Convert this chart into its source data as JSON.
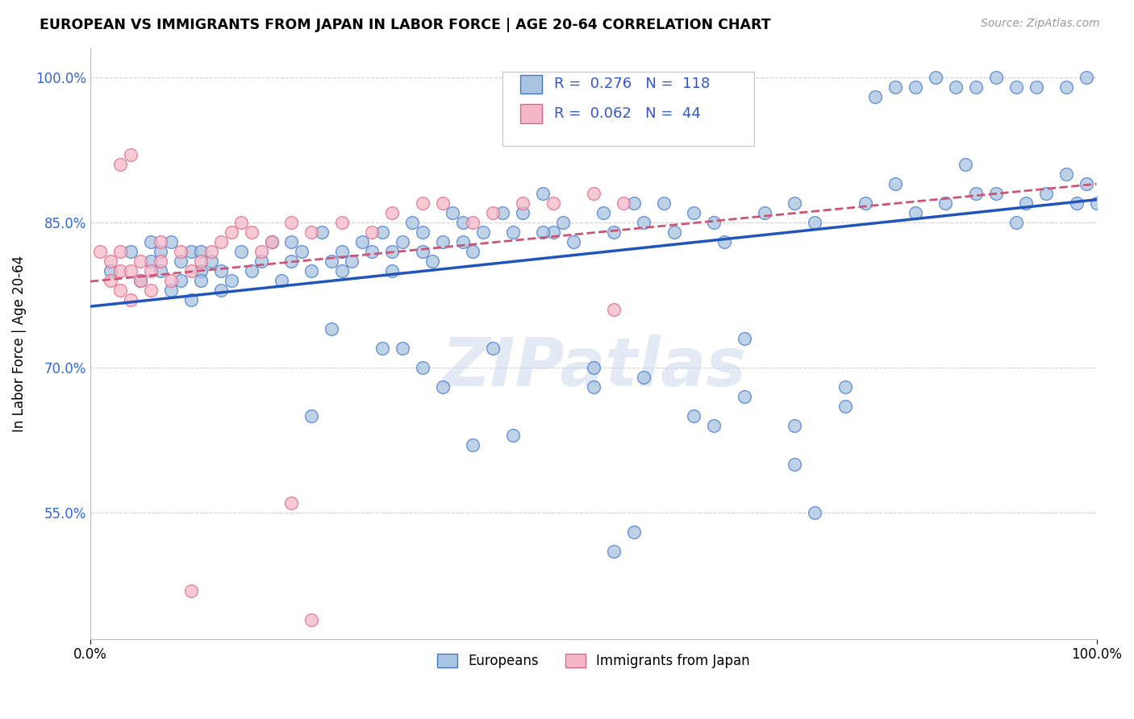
{
  "title": "EUROPEAN VS IMMIGRANTS FROM JAPAN IN LABOR FORCE | AGE 20-64 CORRELATION CHART",
  "source": "Source: ZipAtlas.com",
  "ylabel": "In Labor Force | Age 20-64",
  "xlim": [
    0.0,
    1.0
  ],
  "ylim": [
    0.42,
    1.03
  ],
  "legend_blue_r": "0.276",
  "legend_blue_n": "118",
  "legend_pink_r": "0.062",
  "legend_pink_n": "44",
  "legend_label_blue": "Europeans",
  "legend_label_pink": "Immigrants from Japan",
  "blue_fill": "#a8c4e0",
  "pink_fill": "#f4b8c8",
  "blue_edge": "#4477cc",
  "pink_edge": "#dd6688",
  "blue_line": "#2255bb",
  "pink_line": "#cc5577",
  "watermark": "ZIPatlas",
  "blue_scatter_x": [
    0.02,
    0.04,
    0.05,
    0.06,
    0.06,
    0.07,
    0.07,
    0.08,
    0.08,
    0.09,
    0.09,
    0.1,
    0.1,
    0.11,
    0.11,
    0.11,
    0.12,
    0.13,
    0.13,
    0.14,
    0.15,
    0.16,
    0.17,
    0.18,
    0.19,
    0.2,
    0.2,
    0.21,
    0.22,
    0.23,
    0.24,
    0.25,
    0.25,
    0.26,
    0.27,
    0.28,
    0.29,
    0.3,
    0.3,
    0.31,
    0.32,
    0.33,
    0.33,
    0.34,
    0.35,
    0.36,
    0.37,
    0.37,
    0.38,
    0.39,
    0.4,
    0.41,
    0.42,
    0.43,
    0.45,
    0.46,
    0.47,
    0.48,
    0.5,
    0.51,
    0.52,
    0.54,
    0.55,
    0.57,
    0.58,
    0.6,
    0.62,
    0.63,
    0.65,
    0.67,
    0.7,
    0.72,
    0.75,
    0.77,
    0.8,
    0.82,
    0.85,
    0.87,
    0.88,
    0.9,
    0.92,
    0.93,
    0.95,
    0.97,
    0.98,
    0.99,
    0.5,
    0.55,
    0.6,
    0.65,
    0.42,
    0.38,
    0.7,
    0.75,
    0.29,
    0.24,
    0.31,
    0.33,
    0.35,
    0.62,
    0.7,
    0.72,
    0.78,
    0.8,
    0.82,
    0.84,
    0.86,
    0.88,
    0.9,
    0.92,
    0.94,
    0.97,
    0.99,
    1.0,
    0.52,
    0.54,
    0.22,
    0.45
  ],
  "blue_scatter_y": [
    0.8,
    0.82,
    0.79,
    0.83,
    0.81,
    0.8,
    0.82,
    0.78,
    0.83,
    0.79,
    0.81,
    0.77,
    0.82,
    0.8,
    0.79,
    0.82,
    0.81,
    0.78,
    0.8,
    0.79,
    0.82,
    0.8,
    0.81,
    0.83,
    0.79,
    0.81,
    0.83,
    0.82,
    0.8,
    0.84,
    0.81,
    0.8,
    0.82,
    0.81,
    0.83,
    0.82,
    0.84,
    0.82,
    0.8,
    0.83,
    0.85,
    0.82,
    0.84,
    0.81,
    0.83,
    0.86,
    0.83,
    0.85,
    0.82,
    0.84,
    0.72,
    0.86,
    0.84,
    0.86,
    0.88,
    0.84,
    0.85,
    0.83,
    0.7,
    0.86,
    0.84,
    0.87,
    0.85,
    0.87,
    0.84,
    0.86,
    0.85,
    0.83,
    0.73,
    0.86,
    0.87,
    0.85,
    0.68,
    0.87,
    0.89,
    0.86,
    0.87,
    0.91,
    0.88,
    0.88,
    0.85,
    0.87,
    0.88,
    0.9,
    0.87,
    0.89,
    0.68,
    0.69,
    0.65,
    0.67,
    0.63,
    0.62,
    0.64,
    0.66,
    0.72,
    0.74,
    0.72,
    0.7,
    0.68,
    0.64,
    0.6,
    0.55,
    0.98,
    0.99,
    0.99,
    1.0,
    0.99,
    0.99,
    1.0,
    0.99,
    0.99,
    0.99,
    1.0,
    0.87,
    0.51,
    0.53,
    0.65,
    0.84
  ],
  "pink_scatter_x": [
    0.01,
    0.02,
    0.02,
    0.03,
    0.03,
    0.03,
    0.04,
    0.04,
    0.05,
    0.05,
    0.06,
    0.06,
    0.07,
    0.07,
    0.08,
    0.09,
    0.1,
    0.11,
    0.12,
    0.13,
    0.14,
    0.15,
    0.16,
    0.17,
    0.18,
    0.2,
    0.22,
    0.25,
    0.28,
    0.3,
    0.33,
    0.35,
    0.38,
    0.4,
    0.43,
    0.46,
    0.5,
    0.53,
    0.03,
    0.04,
    0.52,
    0.2,
    0.22,
    0.1
  ],
  "pink_scatter_y": [
    0.82,
    0.79,
    0.81,
    0.78,
    0.8,
    0.82,
    0.77,
    0.8,
    0.79,
    0.81,
    0.78,
    0.8,
    0.81,
    0.83,
    0.79,
    0.82,
    0.8,
    0.81,
    0.82,
    0.83,
    0.84,
    0.85,
    0.84,
    0.82,
    0.83,
    0.85,
    0.84,
    0.85,
    0.84,
    0.86,
    0.87,
    0.87,
    0.85,
    0.86,
    0.87,
    0.87,
    0.88,
    0.87,
    0.91,
    0.92,
    0.76,
    0.56,
    0.44,
    0.47
  ]
}
